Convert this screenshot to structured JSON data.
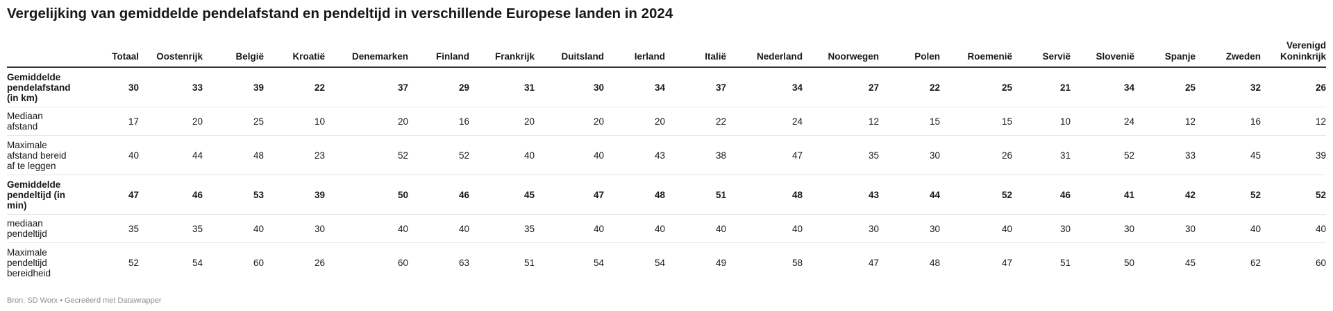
{
  "title": "Vergelijking van gemiddelde pendelafstand en pendeltijd in verschillende Europese landen in 2024",
  "footer": "Bron: SD Worx • Gecreëerd met Datawrapper",
  "chart_data": {
    "type": "table",
    "columns": [
      "Totaal",
      "Oostenrijk",
      "België",
      "Kroatië",
      "Denemarken",
      "Finland",
      "Frankrijk",
      "Duitsland",
      "Ierland",
      "Italië",
      "Nederland",
      "Noorwegen",
      "Polen",
      "Roemenië",
      "Servië",
      "Slovenië",
      "Spanje",
      "Zweden",
      "Verenigd Koninkrijk"
    ],
    "rows": [
      {
        "label": "Gemiddelde pendelafstand (in km)",
        "bold": true,
        "values": [
          30,
          33,
          39,
          22,
          37,
          29,
          31,
          30,
          34,
          37,
          34,
          27,
          22,
          25,
          21,
          34,
          25,
          32,
          26
        ]
      },
      {
        "label": "Mediaan afstand",
        "bold": false,
        "values": [
          17,
          20,
          25,
          10,
          20,
          16,
          20,
          20,
          20,
          22,
          24,
          12,
          15,
          15,
          10,
          24,
          12,
          16,
          12
        ]
      },
      {
        "label": "Maximale afstand bereid af te leggen",
        "bold": false,
        "values": [
          40,
          44,
          48,
          23,
          52,
          52,
          40,
          40,
          43,
          38,
          47,
          35,
          30,
          26,
          31,
          52,
          33,
          45,
          39
        ]
      },
      {
        "label": "Gemiddelde pendeltijd (in min)",
        "bold": true,
        "values": [
          47,
          46,
          53,
          39,
          50,
          46,
          45,
          47,
          48,
          51,
          48,
          43,
          44,
          52,
          46,
          41,
          42,
          52,
          52
        ]
      },
      {
        "label": "mediaan pendeltijd",
        "bold": false,
        "values": [
          35,
          35,
          40,
          30,
          40,
          40,
          35,
          40,
          40,
          40,
          40,
          30,
          30,
          40,
          30,
          30,
          30,
          40,
          40
        ]
      },
      {
        "label": "Maximale pendeltijd bereidheid",
        "bold": false,
        "values": [
          52,
          54,
          60,
          26,
          60,
          63,
          51,
          54,
          54,
          49,
          58,
          47,
          48,
          47,
          51,
          50,
          45,
          62,
          60
        ]
      }
    ]
  }
}
